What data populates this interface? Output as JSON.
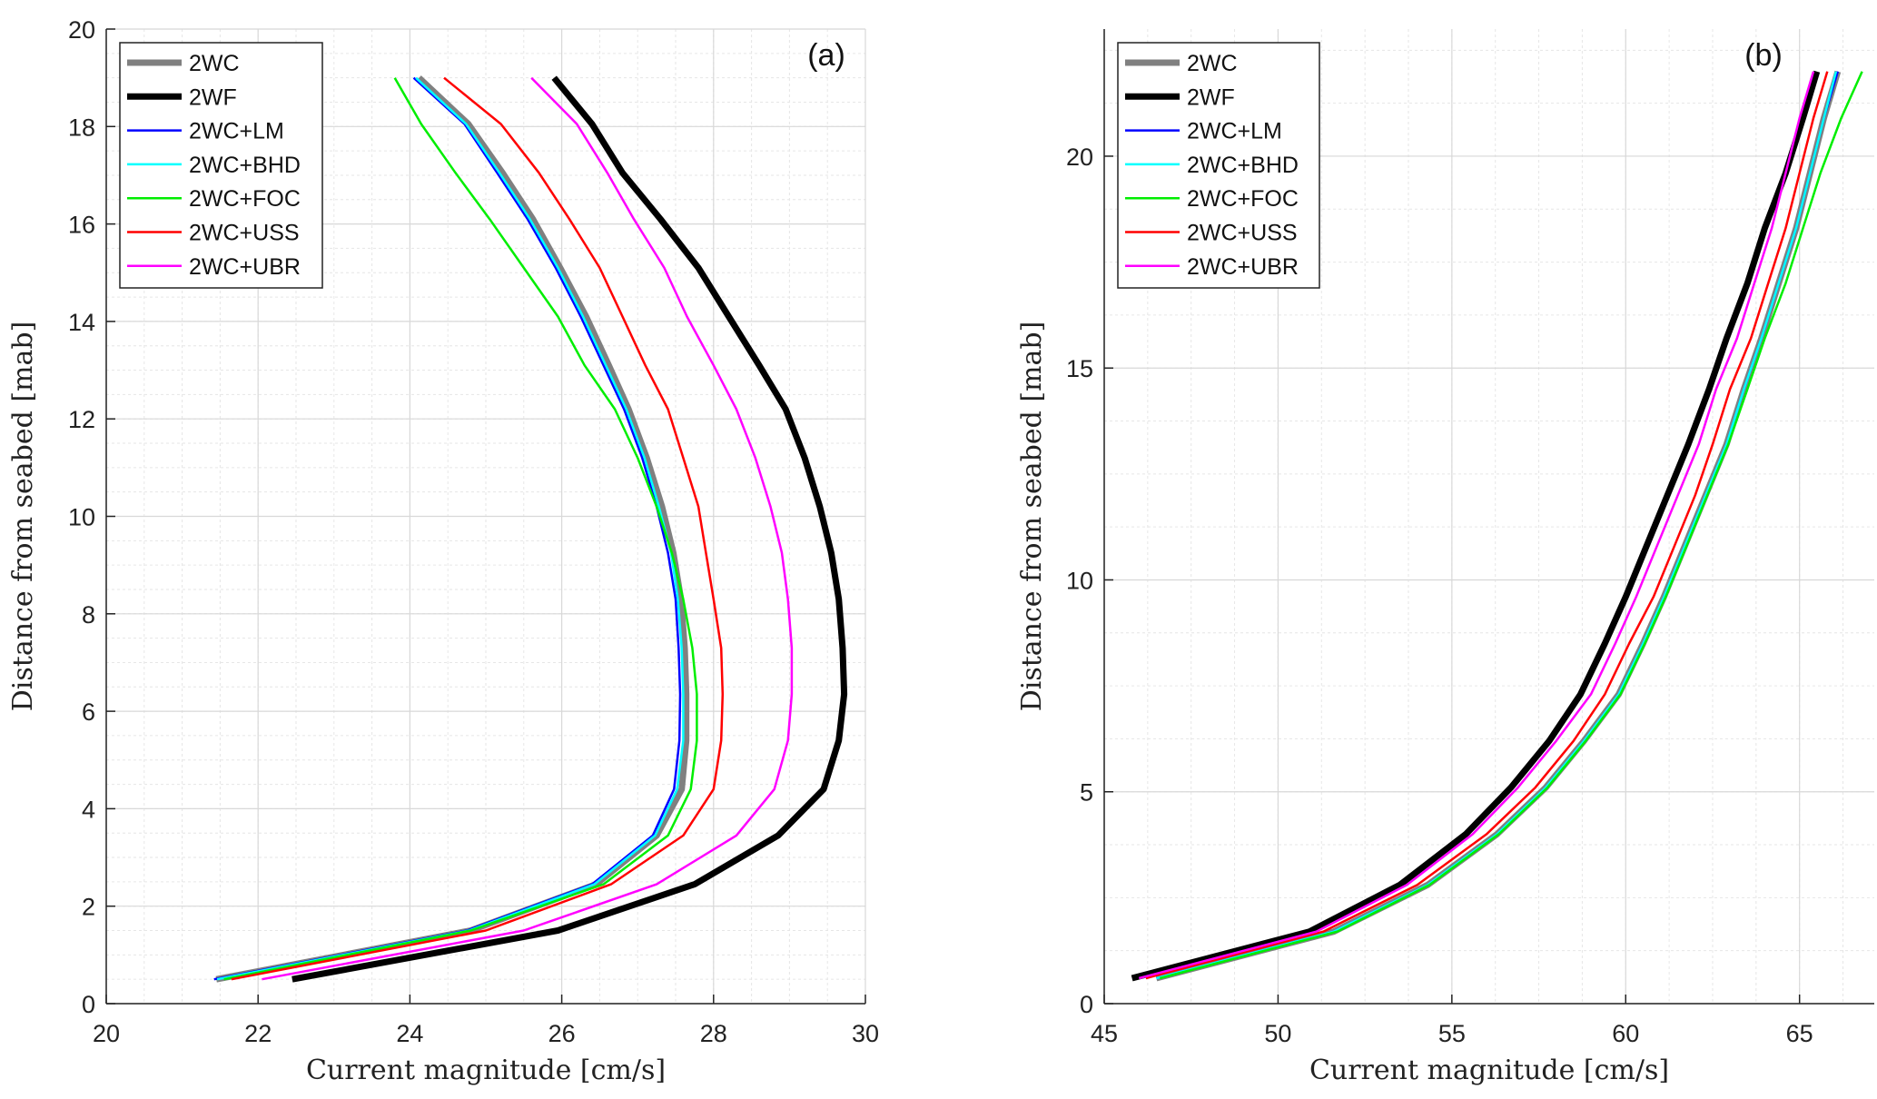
{
  "chart_data": [
    {
      "type": "line",
      "panel_label": "(a)",
      "xlabel": "Current magnitude [cm/s]",
      "ylabel": "Distance from seabed [mab]",
      "xlim": [
        20,
        30
      ],
      "ylim": [
        0,
        20
      ],
      "xticks": [
        20,
        22,
        24,
        26,
        28,
        30
      ],
      "yticks": [
        0,
        2,
        4,
        6,
        8,
        10,
        12,
        14,
        16,
        18,
        20
      ],
      "grid": true,
      "legend_position": "top-left",
      "y": [
        0.5,
        1.5,
        2.45,
        3.45,
        4.4,
        5.4,
        6.35,
        7.3,
        8.3,
        9.25,
        10.2,
        11.2,
        12.2,
        13.1,
        14.1,
        15.1,
        16.1,
        17.05,
        18.05,
        19.0
      ],
      "series": [
        {
          "name": "2WC",
          "color": "#808080",
          "width": 7,
          "values": [
            21.45,
            24.8,
            26.45,
            27.25,
            27.58,
            27.64,
            27.64,
            27.62,
            27.57,
            27.47,
            27.32,
            27.12,
            26.88,
            26.62,
            26.32,
            25.98,
            25.62,
            25.22,
            24.77,
            24.12
          ]
        },
        {
          "name": "2WF",
          "color": "#000000",
          "width": 7,
          "values": [
            22.45,
            25.95,
            27.75,
            28.85,
            29.45,
            29.65,
            29.72,
            29.7,
            29.65,
            29.55,
            29.4,
            29.2,
            28.95,
            28.6,
            28.2,
            27.8,
            27.3,
            26.8,
            26.4,
            25.9
          ]
        },
        {
          "name": "2WC+LM",
          "color": "#0000ff",
          "width": 2.5,
          "values": [
            21.42,
            24.75,
            26.4,
            27.2,
            27.48,
            27.55,
            27.56,
            27.54,
            27.5,
            27.4,
            27.25,
            27.06,
            26.82,
            26.55,
            26.25,
            25.92,
            25.55,
            25.15,
            24.72,
            24.05
          ]
        },
        {
          "name": "2WC+BHD",
          "color": "#00ffff",
          "width": 2.5,
          "values": [
            21.46,
            24.78,
            26.43,
            27.23,
            27.52,
            27.6,
            27.6,
            27.58,
            27.53,
            27.44,
            27.28,
            27.09,
            26.85,
            26.58,
            26.28,
            25.95,
            25.58,
            25.18,
            24.74,
            24.08
          ]
        },
        {
          "name": "2WC+FOC",
          "color": "#00ee00",
          "width": 2.5,
          "values": [
            21.55,
            24.8,
            26.55,
            27.4,
            27.7,
            27.78,
            27.78,
            27.72,
            27.6,
            27.45,
            27.25,
            27.0,
            26.7,
            26.3,
            25.95,
            25.5,
            25.05,
            24.6,
            24.15,
            23.8
          ]
        },
        {
          "name": "2WC+USS",
          "color": "#ff0000",
          "width": 2.5,
          "values": [
            21.65,
            25.0,
            26.65,
            27.6,
            28.0,
            28.1,
            28.12,
            28.1,
            28.0,
            27.9,
            27.8,
            27.6,
            27.4,
            27.1,
            26.8,
            26.5,
            26.1,
            25.7,
            25.2,
            24.45
          ]
        },
        {
          "name": "2WC+UBR",
          "color": "#ff00ff",
          "width": 2.5,
          "values": [
            22.05,
            25.5,
            27.25,
            28.3,
            28.8,
            28.98,
            29.03,
            29.03,
            28.98,
            28.9,
            28.75,
            28.55,
            28.3,
            28.0,
            27.65,
            27.35,
            26.95,
            26.6,
            26.2,
            25.6
          ]
        }
      ]
    },
    {
      "type": "line",
      "panel_label": "(b)",
      "xlabel": "Current magnitude [cm/s]",
      "ylabel": "Distance from seabed [mab]",
      "xlim": [
        45,
        67.15
      ],
      "ylim": [
        0,
        23
      ],
      "xticks": [
        45,
        50,
        55,
        60,
        65
      ],
      "yticks": [
        0,
        5,
        10,
        15,
        20
      ],
      "grid": true,
      "legend_position": "top-left",
      "y": [
        0.6,
        1.7,
        2.8,
        4.0,
        5.1,
        6.2,
        7.3,
        8.5,
        9.6,
        10.8,
        12.0,
        13.2,
        14.5,
        15.7,
        17.0,
        18.3,
        19.6,
        20.9,
        22.0
      ],
      "series": [
        {
          "name": "2WC",
          "color": "#808080",
          "width": 7,
          "values": [
            46.5,
            51.6,
            54.3,
            56.3,
            57.7,
            58.8,
            59.8,
            60.5,
            61.1,
            61.7,
            62.3,
            62.9,
            63.4,
            63.9,
            64.4,
            64.9,
            65.3,
            65.7,
            66.1
          ]
        },
        {
          "name": "2WF",
          "color": "#000000",
          "width": 7,
          "values": [
            45.8,
            50.9,
            53.5,
            55.4,
            56.7,
            57.8,
            58.7,
            59.4,
            60.0,
            60.6,
            61.2,
            61.8,
            62.4,
            62.9,
            63.5,
            64.0,
            64.6,
            65.1,
            65.5
          ]
        },
        {
          "name": "2WC+LM",
          "color": "#0000ff",
          "width": 2.5,
          "values": [
            46.5,
            51.6,
            54.3,
            56.3,
            57.7,
            58.8,
            59.8,
            60.5,
            61.1,
            61.7,
            62.3,
            62.9,
            63.4,
            63.9,
            64.4,
            64.9,
            65.3,
            65.7,
            66.1
          ]
        },
        {
          "name": "2WC+BHD",
          "color": "#00ffff",
          "width": 2.5,
          "values": [
            46.5,
            51.6,
            54.3,
            56.3,
            57.7,
            58.8,
            59.8,
            60.5,
            61.1,
            61.7,
            62.3,
            62.9,
            63.4,
            63.9,
            64.4,
            64.9,
            65.3,
            65.7,
            66.05
          ]
        },
        {
          "name": "2WC+FOC",
          "color": "#00ee00",
          "width": 2.5,
          "values": [
            46.6,
            51.7,
            54.35,
            56.35,
            57.75,
            58.85,
            59.85,
            60.55,
            61.15,
            61.75,
            62.35,
            62.95,
            63.5,
            64.0,
            64.6,
            65.1,
            65.6,
            66.2,
            66.8
          ]
        },
        {
          "name": "2WC+USS",
          "color": "#ff0000",
          "width": 2.5,
          "values": [
            46.2,
            51.3,
            54.0,
            56.0,
            57.4,
            58.5,
            59.4,
            60.1,
            60.8,
            61.4,
            62.0,
            62.5,
            63.0,
            63.6,
            64.1,
            64.6,
            65.0,
            65.4,
            65.8
          ]
        },
        {
          "name": "2WC+UBR",
          "color": "#ff00ff",
          "width": 2.5,
          "values": [
            46.0,
            51.1,
            53.7,
            55.6,
            56.9,
            58.0,
            59.0,
            59.7,
            60.3,
            60.9,
            61.5,
            62.1,
            62.6,
            63.2,
            63.7,
            64.2,
            64.6,
            65.0,
            65.4
          ]
        }
      ]
    }
  ]
}
